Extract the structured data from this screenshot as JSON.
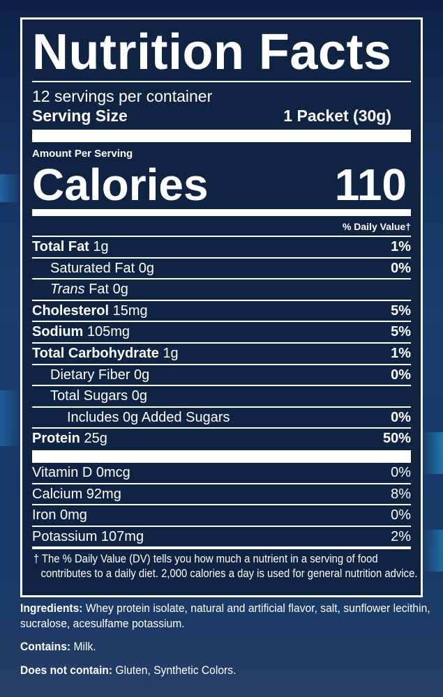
{
  "title": "Nutrition Facts",
  "servings_per_container": "12 servings per container",
  "serving_size": {
    "label": "Serving Size",
    "value": "1 Packet (30g)"
  },
  "amount_per_serving": "Amount Per Serving",
  "calories": {
    "label": "Calories",
    "value": "110"
  },
  "daily_value_header": "% Daily Value†",
  "nutrients": [
    {
      "name": "Total Fat",
      "amount": "1g",
      "dv": "1%"
    },
    {
      "name": "Saturated Fat",
      "amount": "0g",
      "dv": "0%"
    },
    {
      "name": "Trans",
      "name_suffix": "Fat 0g",
      "dv": ""
    },
    {
      "name": "Cholesterol",
      "amount": "15mg",
      "dv": "5%"
    },
    {
      "name": "Sodium",
      "amount": "105mg",
      "dv": "5%"
    },
    {
      "name": "Total Carbohydrate",
      "amount": "1g",
      "dv": "1%"
    },
    {
      "name": "Dietary Fiber",
      "amount": "0g",
      "dv": "0%"
    },
    {
      "name": "Total Sugars",
      "amount": "0g",
      "dv": ""
    },
    {
      "name": "Includes 0g Added Sugars",
      "dv": "0%"
    },
    {
      "name": "Protein",
      "amount": "25g",
      "dv": "50%"
    }
  ],
  "vitamins": [
    {
      "label": "Vitamin D 0mcg",
      "dv": "0%"
    },
    {
      "label": "Calcium 92mg",
      "dv": "8%"
    },
    {
      "label": "Iron 0mg",
      "dv": "0%"
    },
    {
      "label": "Potassium 107mg",
      "dv": "2%"
    }
  ],
  "footnote": "† The % Daily Value (DV) tells you how much a nutrient in a serving of food contributes to a daily diet. 2,000 calories a day is used for general nutrition advice.",
  "ingredients": {
    "label": "Ingredients:",
    "text": " Whey protein isolate, natural and artificial flavor, salt, sunflower lecithin, sucralose, acesulfame potassium."
  },
  "contains": {
    "label": "Contains:",
    "text": " Milk."
  },
  "does_not_contain": {
    "label": "Does not contain:",
    "text": " Gluten, Synthetic Colors."
  },
  "colors": {
    "background": "#173866",
    "panel": "#0f2342",
    "text": "#ffffff"
  }
}
